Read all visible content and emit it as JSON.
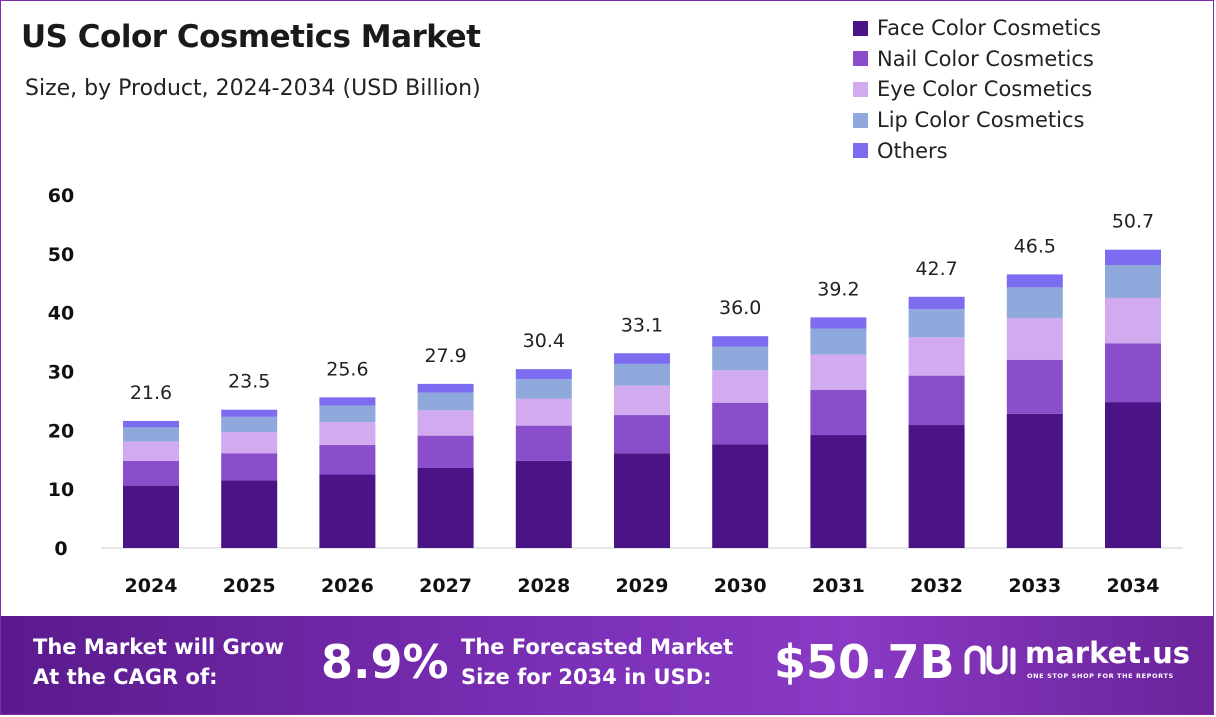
{
  "title": "US Color Cosmetics Market",
  "subtitle": "Size, by Product, 2024-2034 (USD Billion)",
  "chart_data": {
    "type": "bar",
    "stacked": true,
    "categories": [
      "2024",
      "2025",
      "2026",
      "2027",
      "2028",
      "2029",
      "2030",
      "2031",
      "2032",
      "2033",
      "2034"
    ],
    "series": [
      {
        "name": "Face Color Cosmetics",
        "color": "#4a1486",
        "values": [
          10.6,
          11.5,
          12.5,
          13.6,
          14.8,
          16.1,
          17.6,
          19.2,
          20.9,
          22.8,
          24.8
        ]
      },
      {
        "name": "Nail Color Cosmetics",
        "color": "#8a4ecb",
        "values": [
          4.2,
          4.6,
          5.0,
          5.5,
          6.0,
          6.5,
          7.1,
          7.7,
          8.4,
          9.2,
          10.0
        ]
      },
      {
        "name": "Eye Color Cosmetics",
        "color": "#d2aaf0",
        "values": [
          3.3,
          3.6,
          3.9,
          4.3,
          4.6,
          5.0,
          5.5,
          6.0,
          6.5,
          7.1,
          7.7
        ]
      },
      {
        "name": "Lip Color Cosmetics",
        "color": "#8fa9dc",
        "values": [
          2.4,
          2.6,
          2.8,
          3.0,
          3.3,
          3.7,
          4.0,
          4.4,
          4.8,
          5.2,
          5.6
        ]
      },
      {
        "name": "Others",
        "color": "#7b6cf0",
        "values": [
          1.1,
          1.2,
          1.4,
          1.5,
          1.7,
          1.8,
          1.8,
          1.9,
          2.1,
          2.2,
          2.6
        ]
      }
    ],
    "totals": [
      "21.6",
      "23.5",
      "25.6",
      "27.9",
      "30.4",
      "33.1",
      "36.0",
      "39.2",
      "42.7",
      "46.5",
      "50.7"
    ],
    "ylim": [
      0,
      60
    ],
    "yticks": [
      0,
      10,
      20,
      30,
      40,
      50,
      60
    ],
    "xlabel": "",
    "ylabel": "",
    "grid": false,
    "legend_position": "top-right"
  },
  "banner": {
    "cagr_line1": "The Market will Grow",
    "cagr_line2": "At the CAGR of:",
    "cagr_value": "8.9%",
    "forecast_line1": "The Forecasted Market",
    "forecast_line2": "Size for 2034 in USD:",
    "forecast_value": "$50.7B",
    "brand_name": "market.us",
    "brand_tagline": "ONE STOP SHOP FOR THE REPORTS",
    "brand_logo_icon": "market-us-logo-icon"
  }
}
